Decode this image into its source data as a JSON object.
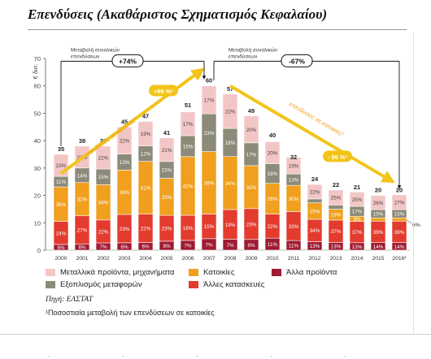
{
  "title": "Επενδύσεις (Ακαθάριστος Σχηματισμός Κεφαλαίου)",
  "chart_data": {
    "type": "bar",
    "stacked": true,
    "ylabel": "€ δισ.",
    "ylim": [
      0,
      70
    ],
    "yticks": [
      0,
      10,
      20,
      30,
      40,
      50,
      60,
      70
    ],
    "categories": [
      "2000",
      "2001",
      "2002",
      "2003",
      "2004",
      "2005",
      "2006",
      "2007",
      "2008",
      "2009",
      "2010",
      "2011",
      "2012",
      "2013",
      "2014",
      "2015",
      "2016¹"
    ],
    "totals": [
      35,
      38,
      38,
      45,
      47,
      41,
      51,
      60,
      57,
      49,
      40,
      32,
      24,
      22,
      21,
      20,
      20
    ],
    "total_labels": [
      "35",
      "38",
      "38",
      "45",
      "47",
      "41",
      "51",
      "60",
      "57",
      "49",
      "40",
      "32",
      "24",
      "22",
      "21",
      "20",
      "20"
    ],
    "series": [
      {
        "name": "Άλλα προϊόντα",
        "color": "#9e1b32",
        "labels": [
          "6%",
          "6%",
          "7%",
          "6%",
          "6%",
          "8%",
          "7%",
          "7%",
          "7%",
          "8%",
          "11%",
          "11%",
          "13%",
          "13%",
          "13%",
          "14%",
          "14%"
        ]
      },
      {
        "name": "Άλλες κατασκευές",
        "color": "#e33b2e",
        "labels": [
          "24%",
          "27%",
          "22%",
          "23%",
          "22%",
          "23%",
          "18%",
          "15%",
          "19%",
          "23%",
          "22%",
          "33%",
          "34%",
          "37%",
          "37%",
          "39%",
          "39%"
        ]
      },
      {
        "name": "Κατοικίες",
        "color": "#f0a01e",
        "labels": [
          "36%",
          "32%",
          "34%",
          "36%",
          "41%",
          "33%",
          "42%",
          "38%",
          "34%",
          "32%",
          "28%",
          "30%",
          "25%",
          "18%",
          "9%",
          "6%",
          "6%"
        ]
      },
      {
        "name": "Εξοπλισμός μεταφορών",
        "color": "#8c8a78",
        "labels": [
          "11%",
          "14%",
          "15%",
          "13%",
          "12%",
          "15%",
          "15%",
          "23%",
          "18%",
          "17%",
          "18%",
          "13%",
          "6%",
          "7%",
          "17%",
          "15%",
          "15%"
        ]
      },
      {
        "name": "Μεταλλικά προϊόντα, μηχανήματα",
        "color": "#f3c6c6",
        "labels": [
          "23%",
          "21%",
          "22%",
          "22%",
          "19%",
          "21%",
          "17%",
          "17%",
          "22%",
          "20%",
          "20%",
          "19%",
          "22%",
          "25%",
          "25%",
          "26%",
          "27%"
        ]
      }
    ],
    "annotations": {
      "left_change_label": "Μεταβολή συνολικών επενδύσεων",
      "left_change_value": "+74%",
      "right_change_label": "Μεταβολή συνολικών επενδύσεων",
      "right_change_value": "-67%",
      "left_housing_label": "επενδύσεις σε κατοικίες¹",
      "left_housing_value": "+99 %¹",
      "right_housing_label": "επενδύσεις σε κατοικίες¹",
      "right_housing_value": "- 96 %¹",
      "side_label": "6%"
    }
  },
  "legend_order": [
    4,
    2,
    0,
    3,
    1
  ],
  "source": "Πηγή: ΕΛΣΤΑΤ",
  "footnote": "¹Ποσοστιαία μεταβολή των επενδύσεων σε κατοικίες"
}
